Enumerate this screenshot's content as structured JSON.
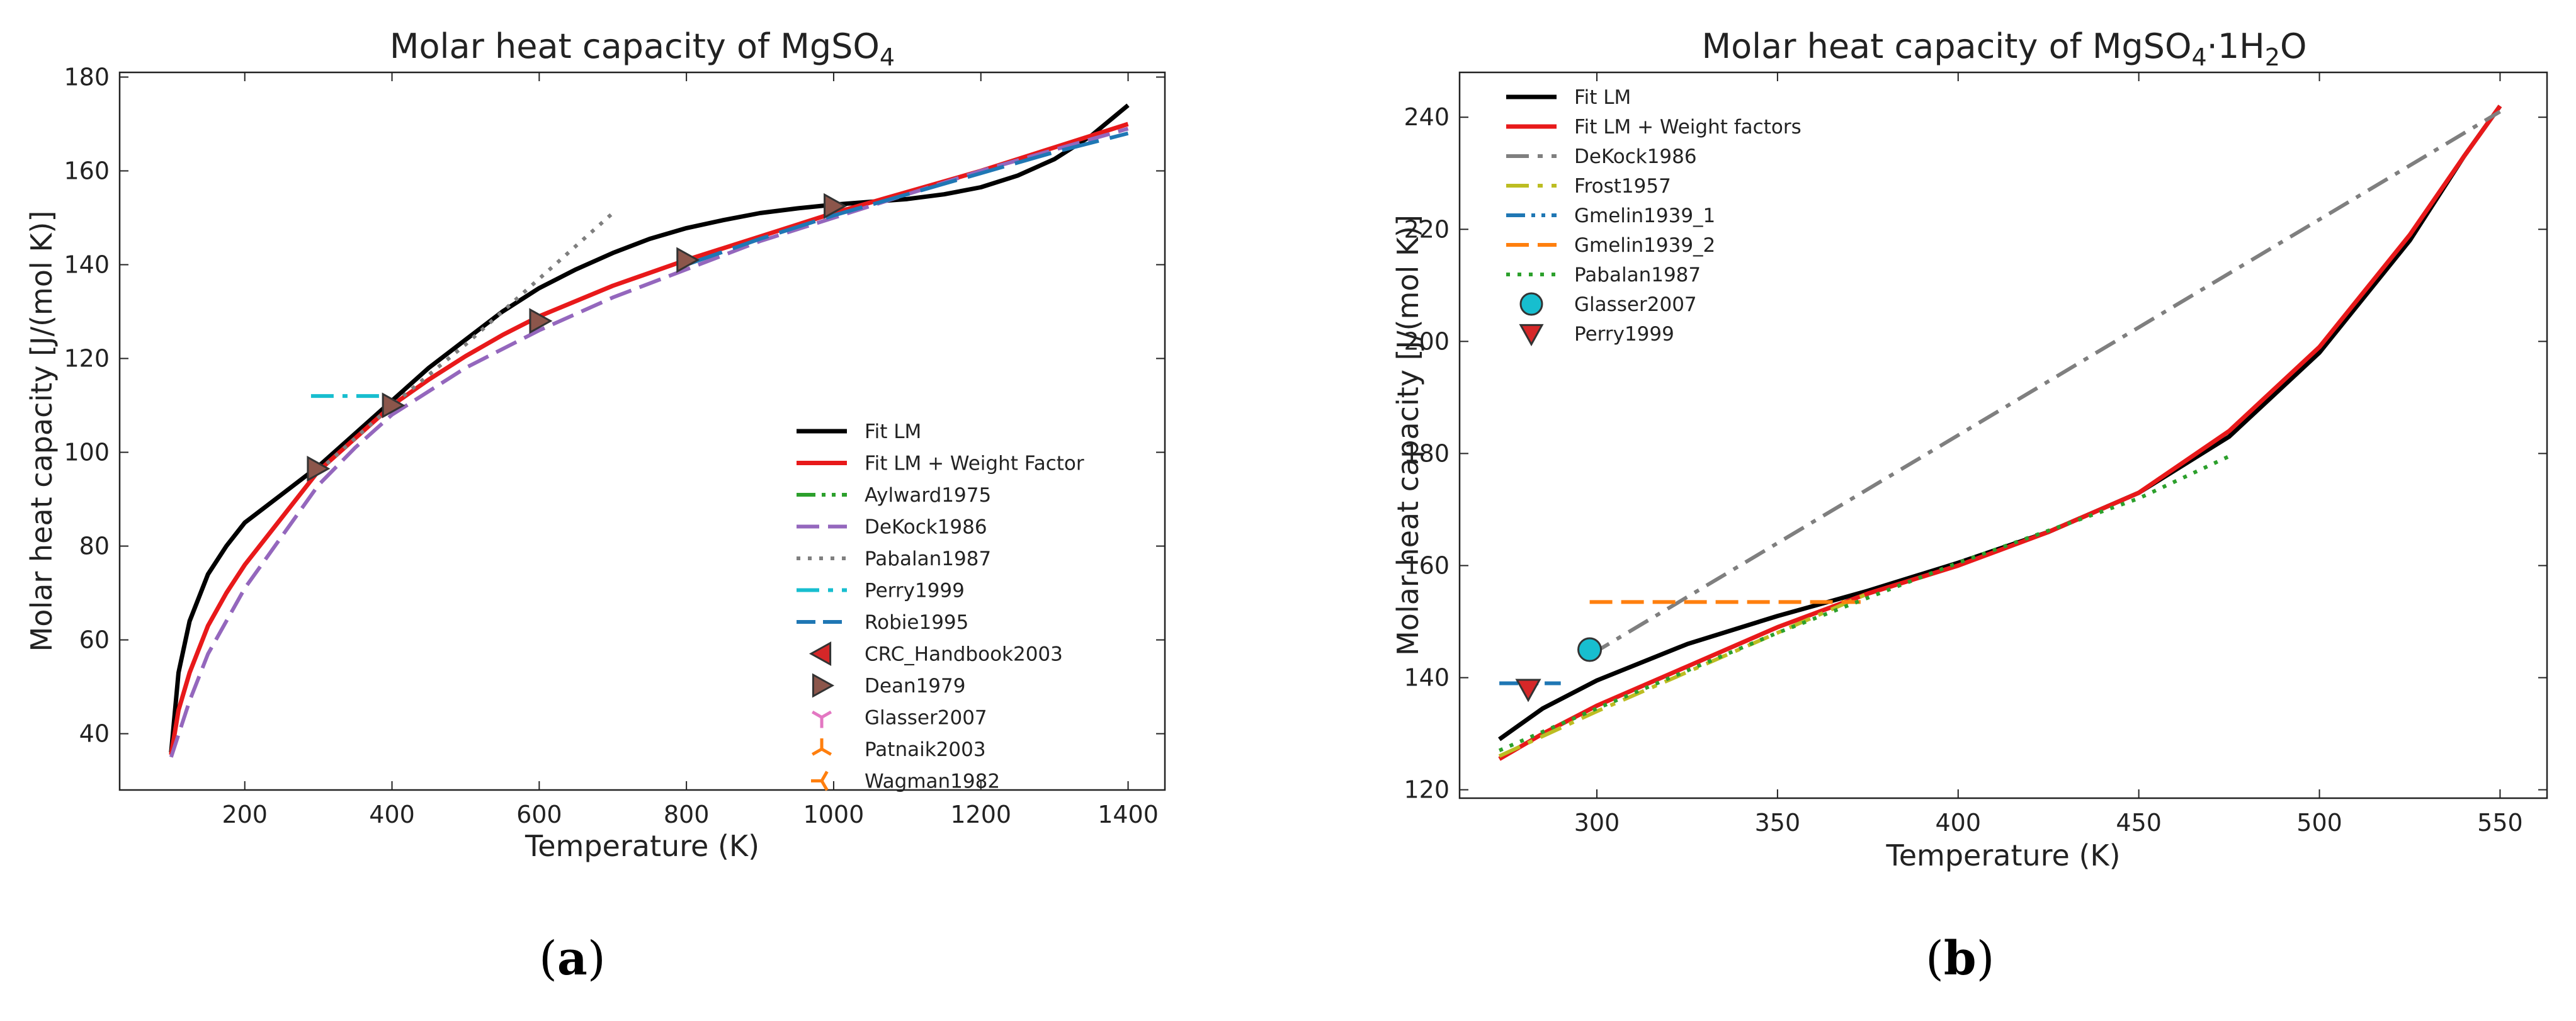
{
  "figure": {
    "label_a": "a",
    "label_b": "b"
  },
  "chart_data": [
    {
      "type": "line",
      "title": "Molar heat capacity of MgSO",
      "title_subscript": "4",
      "xlabel": "Temperature (K)",
      "ylabel": "Molar heat capacity [J/(mol K)]",
      "xlim": [
        30,
        1450
      ],
      "ylim": [
        28,
        181
      ],
      "xticks": [
        200,
        400,
        600,
        800,
        1000,
        1200,
        1400
      ],
      "yticks": [
        40,
        60,
        80,
        100,
        120,
        140,
        160,
        180
      ],
      "legend_position": "lower-right",
      "series": [
        {
          "name": "Fit LM",
          "style": "solid",
          "color": "#000000",
          "x": [
            100,
            110,
            125,
            150,
            175,
            200,
            250,
            300,
            350,
            400,
            450,
            500,
            550,
            600,
            650,
            700,
            750,
            800,
            850,
            900,
            950,
            1000,
            1050,
            1100,
            1150,
            1200,
            1250,
            1300,
            1350,
            1400
          ],
          "y": [
            36,
            53,
            64,
            74,
            80,
            85,
            91,
            97,
            104,
            111,
            118,
            124,
            130,
            135,
            139,
            142.5,
            145.5,
            147.8,
            149.5,
            151,
            152,
            152.8,
            153.4,
            154,
            155,
            156.5,
            159,
            162.5,
            167.5,
            174
          ]
        },
        {
          "name": "Fit LM + Weight Factor",
          "style": "solid",
          "color": "#e8191a",
          "x": [
            100,
            110,
            125,
            150,
            175,
            200,
            250,
            300,
            350,
            400,
            450,
            500,
            550,
            600,
            700,
            800,
            900,
            1000,
            1100,
            1200,
            1300,
            1400
          ],
          "y": [
            35.5,
            45,
            53,
            63,
            70,
            76,
            86,
            96,
            103,
            110,
            115.5,
            120.5,
            125,
            129,
            135.5,
            141,
            146,
            151,
            155.5,
            160,
            165,
            170
          ]
        },
        {
          "name": "Aylward1975",
          "style": "dashdotdot",
          "color": "#2ca02c",
          "x": [],
          "y": []
        },
        {
          "name": "DeKock1986",
          "style": "dashed",
          "color": "#9467bd",
          "x": [
            100,
            125,
            150,
            200,
            250,
            300,
            350,
            400,
            500,
            600,
            700,
            800,
            900,
            1000,
            1100,
            1200,
            1300,
            1400
          ],
          "y": [
            35,
            47,
            57,
            71,
            82,
            93,
            101,
            108,
            118,
            126,
            133,
            139,
            145,
            150,
            155,
            160,
            164.5,
            169
          ]
        },
        {
          "name": "Pabalan1987",
          "style": "dotted",
          "color": "#7f7f7f",
          "x": [
            300,
            400,
            500,
            600,
            700
          ],
          "y": [
            96,
            110,
            123,
            137,
            151
          ]
        },
        {
          "name": "Perry1999",
          "style": "dashdot",
          "color": "#17becf",
          "x": [
            290,
            390
          ],
          "y": [
            112,
            112
          ]
        },
        {
          "name": "Robie1995",
          "style": "longdash",
          "color": "#1f77b4",
          "x": [
            800,
            900,
            1000,
            1100,
            1200,
            1300,
            1400
          ],
          "y": [
            140,
            145.5,
            150.5,
            155,
            159.5,
            164,
            168
          ]
        },
        {
          "name": "CRC_Handbook2003",
          "style": "marker",
          "marker": "triangle-left",
          "color": "#d62728",
          "x": [],
          "y": []
        },
        {
          "name": "Dean1979",
          "style": "marker",
          "marker": "triangle-right",
          "color": "#8c564b",
          "x": [
            298,
            400,
            600,
            800,
            1000
          ],
          "y": [
            96.5,
            110,
            128,
            141,
            152.5
          ]
        },
        {
          "name": "Glasser2007",
          "style": "marker",
          "marker": "tri-down",
          "color": "#e377c2",
          "x": [],
          "y": []
        },
        {
          "name": "Patnaik2003",
          "style": "marker",
          "marker": "tri-up",
          "color": "#ff7f0e",
          "x": [],
          "y": []
        },
        {
          "name": "Wagman1982",
          "style": "marker",
          "marker": "tri-left",
          "color": "#ff7f0e",
          "x": [],
          "y": []
        }
      ]
    },
    {
      "type": "line",
      "title": "Molar heat capacity of MgSO",
      "title_subscript": "4",
      "title_suffix": "·1H",
      "title_subscript2": "2",
      "title_end": "O",
      "xlabel": "Temperature (K)",
      "ylabel": "Molar heat capacity [J/(mol K)]",
      "xlim": [
        262,
        563
      ],
      "ylim": [
        118.5,
        248
      ],
      "xticks": [
        300,
        350,
        400,
        450,
        500,
        550
      ],
      "yticks": [
        120,
        140,
        160,
        180,
        200,
        220,
        240
      ],
      "legend_position": "upper-left",
      "series": [
        {
          "name": "Fit LM",
          "style": "solid",
          "color": "#000000",
          "x": [
            273,
            285,
            300,
            325,
            350,
            375,
            400,
            425,
            450,
            475,
            500,
            525,
            540,
            550
          ],
          "y": [
            129,
            134.5,
            139.5,
            146,
            151,
            155.5,
            160.5,
            166,
            173,
            183,
            198,
            218,
            233,
            242
          ]
        },
        {
          "name": "Fit LM + Weight factors",
          "style": "solid",
          "color": "#e8191a",
          "x": [
            273,
            285,
            300,
            325,
            350,
            375,
            400,
            425,
            450,
            475,
            500,
            525,
            540,
            550
          ],
          "y": [
            125.5,
            130,
            135,
            142,
            149,
            155,
            160,
            166,
            173,
            184,
            199,
            219,
            233,
            242
          ]
        },
        {
          "name": "DeKock1986",
          "style": "dashdot",
          "color": "#7f7f7f",
          "x": [
            298,
            550
          ],
          "y": [
            144,
            241
          ]
        },
        {
          "name": "Frost1957",
          "style": "dashdot",
          "color": "#bcbd22",
          "x": [
            273,
            300,
            325,
            350,
            375
          ],
          "y": [
            126,
            134,
            141,
            148,
            155
          ]
        },
        {
          "name": "Gmelin1939_1",
          "style": "dashdotdot",
          "color": "#1f77b4",
          "x": [
            273,
            290
          ],
          "y": [
            139,
            139
          ]
        },
        {
          "name": "Gmelin1939_2",
          "style": "dashed",
          "color": "#ff7f0e",
          "x": [
            298,
            373
          ],
          "y": [
            153.5,
            153.5
          ]
        },
        {
          "name": "Pabalan1987",
          "style": "dotted",
          "color": "#2ca02c",
          "x": [
            273,
            300,
            350,
            400,
            450,
            475
          ],
          "y": [
            127,
            134.5,
            148,
            160.5,
            172,
            179.5
          ]
        },
        {
          "name": "Glasser2007",
          "style": "marker",
          "marker": "circle",
          "color": "#17becf",
          "x": [
            298
          ],
          "y": [
            145
          ]
        },
        {
          "name": "Perry1999",
          "style": "marker",
          "marker": "triangle-down",
          "color": "#d62728",
          "x": [
            281
          ],
          "y": [
            138
          ]
        }
      ]
    }
  ]
}
